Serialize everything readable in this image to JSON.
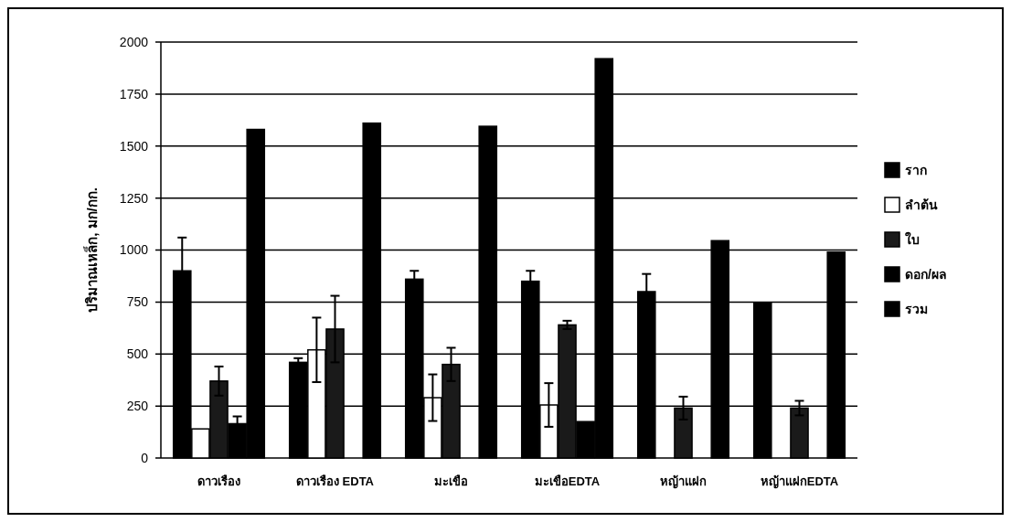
{
  "chart_data": {
    "type": "bar",
    "ylabel": "ปริมาณเหล็ก, มก/กก.",
    "categories": [
      "ดาวเรือง",
      "ดาวเรือง EDTA",
      "มะเขือ",
      "มะเขือEDTA",
      "หญ้าแฝก",
      "หญ้าแฝกEDTA"
    ],
    "series": [
      {
        "name": "ราก",
        "color": "#000000",
        "values": [
          900,
          460,
          860,
          850,
          800,
          745
        ],
        "errors": [
          160,
          20,
          40,
          50,
          85,
          null
        ]
      },
      {
        "name": "ลำต้น",
        "color": "#ffffff",
        "values": [
          140,
          520,
          290,
          255,
          null,
          null
        ],
        "errors": [
          null,
          155,
          112,
          105,
          null,
          null
        ]
      },
      {
        "name": "ใบ",
        "color": "#1a1a1a",
        "values": [
          370,
          620,
          450,
          640,
          240,
          240
        ],
        "errors": [
          70,
          160,
          80,
          20,
          55,
          35
        ]
      },
      {
        "name": "ดอก/ผล",
        "color": "#000000",
        "values": [
          165,
          null,
          null,
          175,
          null,
          null
        ],
        "errors": [
          35,
          null,
          null,
          null,
          null,
          null
        ]
      },
      {
        "name": "รวม",
        "color": "#000000",
        "values": [
          1580,
          1610,
          1595,
          1920,
          1045,
          990
        ]
      }
    ],
    "ylim": [
      0,
      2000
    ],
    "yticks": [
      0,
      250,
      500,
      750,
      1000,
      1250,
      1500,
      1750,
      2000
    ],
    "grid": "y",
    "legend": "right"
  }
}
